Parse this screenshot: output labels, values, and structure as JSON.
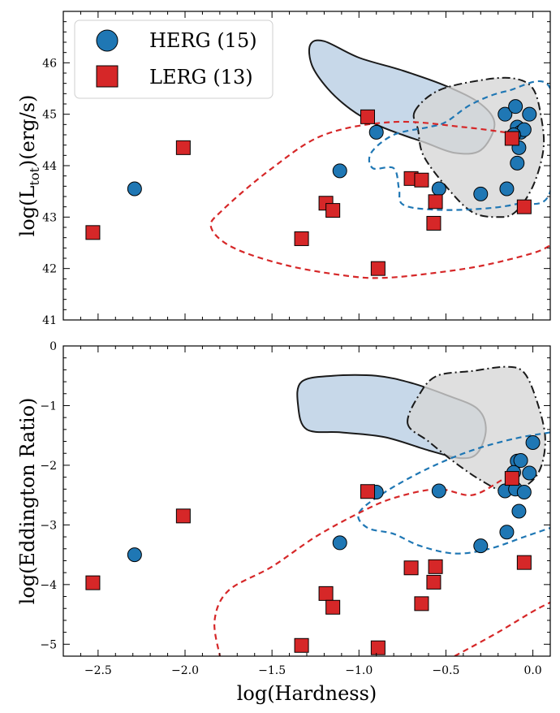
{
  "chart_data": [
    {
      "type": "scatter",
      "panel": "top",
      "xlabel": "",
      "ylabel_prefix": "log(L",
      "ylabel_sub": "tot",
      "ylabel_suffix": ")(erg/s)",
      "xlim": [
        -2.7,
        0.1
      ],
      "ylim": [
        41,
        47
      ],
      "x_ticks": [
        -2.5,
        -2.0,
        -1.5,
        -1.0,
        -0.5,
        0.0
      ],
      "y_ticks": [
        41,
        42,
        43,
        44,
        45,
        46
      ],
      "y_tick_labels": [
        "41",
        "42",
        "43",
        "44",
        "45",
        "46"
      ],
      "legend": {
        "placement": "top-left",
        "entries": [
          {
            "label": "HERG (15)",
            "marker": "circle",
            "color": "#1f77b4"
          },
          {
            "label": "LERG (13)",
            "marker": "square",
            "color": "#d62728"
          }
        ]
      },
      "series": [
        {
          "name": "HERG (15)",
          "color": "#1f77b4",
          "points": [
            {
              "x": -2.29,
              "y": 43.55
            },
            {
              "x": -1.11,
              "y": 43.9
            },
            {
              "x": -0.9,
              "y": 44.65
            },
            {
              "x": -0.54,
              "y": 43.55
            },
            {
              "x": -0.3,
              "y": 43.45
            },
            {
              "x": -0.15,
              "y": 43.55
            },
            {
              "x": -0.16,
              "y": 45.0
            },
            {
              "x": -0.1,
              "y": 45.15
            },
            {
              "x": -0.09,
              "y": 44.75
            },
            {
              "x": -0.07,
              "y": 44.65
            },
            {
              "x": -0.08,
              "y": 44.35
            },
            {
              "x": -0.05,
              "y": 44.7
            },
            {
              "x": -0.02,
              "y": 45.0
            },
            {
              "x": -0.09,
              "y": 44.05
            },
            {
              "x": -0.11,
              "y": 44.6
            }
          ]
        },
        {
          "name": "LERG (13)",
          "color": "#d62728",
          "points": [
            {
              "x": -2.53,
              "y": 42.7
            },
            {
              "x": -2.01,
              "y": 44.35
            },
            {
              "x": -1.33,
              "y": 42.58
            },
            {
              "x": -1.19,
              "y": 43.27
            },
            {
              "x": -1.15,
              "y": 43.13
            },
            {
              "x": -0.95,
              "y": 44.95
            },
            {
              "x": -0.89,
              "y": 42.0
            },
            {
              "x": -0.7,
              "y": 43.75
            },
            {
              "x": -0.64,
              "y": 43.72
            },
            {
              "x": -0.56,
              "y": 43.3
            },
            {
              "x": -0.57,
              "y": 42.88
            },
            {
              "x": -0.12,
              "y": 44.53
            },
            {
              "x": -0.05,
              "y": 43.2
            }
          ]
        }
      ],
      "contours": [
        {
          "name": "HERG filled",
          "fill": "#b7cde3",
          "stroke": "#1a1a1a",
          "dash": "solid",
          "points": [
            [
              -1.28,
              46.35
            ],
            [
              -1.2,
              46.42
            ],
            [
              -1.0,
              46.1
            ],
            [
              -0.75,
              45.85
            ],
            [
              -0.5,
              45.55
            ],
            [
              -0.3,
              45.2
            ],
            [
              -0.22,
              44.8
            ],
            [
              -0.3,
              44.3
            ],
            [
              -0.45,
              44.25
            ],
            [
              -0.62,
              44.45
            ],
            [
              -0.75,
              44.6
            ],
            [
              -0.9,
              44.8
            ],
            [
              -1.05,
              45.1
            ],
            [
              -1.18,
              45.5
            ],
            [
              -1.27,
              45.95
            ]
          ]
        },
        {
          "name": "LERG filled",
          "fill": "#d6d6d6",
          "stroke": "#1a1a1a",
          "dash": "dashdot",
          "points": [
            [
              -0.68,
              45.05
            ],
            [
              -0.55,
              45.45
            ],
            [
              -0.32,
              45.65
            ],
            [
              -0.12,
              45.7
            ],
            [
              0.0,
              45.5
            ],
            [
              0.05,
              44.9
            ],
            [
              0.06,
              44.3
            ],
            [
              0.0,
              43.6
            ],
            [
              -0.1,
              43.1
            ],
            [
              -0.2,
              43.0
            ],
            [
              -0.35,
              43.1
            ],
            [
              -0.5,
              43.6
            ],
            [
              -0.63,
              44.2
            ],
            [
              -0.66,
              44.7
            ]
          ]
        },
        {
          "name": "HERG dashed",
          "fill": "none",
          "stroke": "#1f77b4",
          "dash": "dashed",
          "points": [
            [
              0.1,
              45.5
            ],
            [
              -0.15,
              45.45
            ],
            [
              -0.35,
              45.2
            ],
            [
              -0.5,
              44.85
            ],
            [
              -0.6,
              44.75
            ],
            [
              -0.8,
              44.6
            ],
            [
              -0.93,
              44.25
            ],
            [
              -0.92,
              43.95
            ],
            [
              -0.8,
              43.95
            ],
            [
              -0.77,
              43.55
            ],
            [
              -0.75,
              43.25
            ],
            [
              -0.6,
              43.15
            ],
            [
              -0.35,
              43.15
            ],
            [
              -0.1,
              43.25
            ],
            [
              0.1,
              43.5
            ]
          ]
        },
        {
          "name": "LERG dashed",
          "fill": "none",
          "stroke": "#d62728",
          "dash": "dashed",
          "points": [
            [
              -0.1,
              44.62
            ],
            [
              -0.4,
              44.75
            ],
            [
              -0.8,
              44.85
            ],
            [
              -1.2,
              44.6
            ],
            [
              -1.5,
              43.95
            ],
            [
              -1.78,
              43.15
            ],
            [
              -1.85,
              42.8
            ],
            [
              -1.72,
              42.4
            ],
            [
              -1.4,
              42.05
            ],
            [
              -1.05,
              41.85
            ],
            [
              -0.85,
              41.82
            ],
            [
              -0.6,
              41.9
            ],
            [
              -0.3,
              42.05
            ],
            [
              0.0,
              42.3
            ],
            [
              0.1,
              42.45
            ]
          ],
          "closed": false
        }
      ]
    },
    {
      "type": "scatter",
      "panel": "bottom",
      "xlabel": "log(Hardness)",
      "ylabel": "log(Eddington Ratio)",
      "xlim": [
        -2.7,
        0.1
      ],
      "ylim": [
        -5.2,
        0
      ],
      "x_ticks": [
        -2.5,
        -2.0,
        -1.5,
        -1.0,
        -0.5,
        0.0
      ],
      "x_tick_labels": [
        "−2.5",
        "−2.0",
        "−1.5",
        "−1.0",
        "−0.5",
        "0.0"
      ],
      "y_ticks": [
        -5,
        -4,
        -3,
        -2,
        -1,
        0
      ],
      "y_tick_labels": [
        "−5",
        "−4",
        "−3",
        "−2",
        "−1",
        "0"
      ],
      "series": [
        {
          "name": "HERG (15)",
          "color": "#1f77b4",
          "points": [
            {
              "x": -2.29,
              "y": -3.5
            },
            {
              "x": -1.11,
              "y": -3.3
            },
            {
              "x": -0.9,
              "y": -2.45
            },
            {
              "x": -0.54,
              "y": -2.43
            },
            {
              "x": -0.3,
              "y": -3.35
            },
            {
              "x": -0.15,
              "y": -3.12
            },
            {
              "x": -0.16,
              "y": -2.43
            },
            {
              "x": -0.1,
              "y": -2.4
            },
            {
              "x": -0.09,
              "y": -1.93
            },
            {
              "x": -0.07,
              "y": -1.92
            },
            {
              "x": -0.08,
              "y": -2.77
            },
            {
              "x": -0.05,
              "y": -2.45
            },
            {
              "x": -0.02,
              "y": -2.13
            },
            {
              "x": 0.0,
              "y": -1.62
            },
            {
              "x": -0.11,
              "y": -2.12
            }
          ]
        },
        {
          "name": "LERG (13)",
          "color": "#d62728",
          "points": [
            {
              "x": -2.53,
              "y": -3.97
            },
            {
              "x": -2.01,
              "y": -2.85
            },
            {
              "x": -1.33,
              "y": -5.02
            },
            {
              "x": -1.19,
              "y": -4.15
            },
            {
              "x": -1.15,
              "y": -4.38
            },
            {
              "x": -0.95,
              "y": -2.44
            },
            {
              "x": -0.89,
              "y": -5.06
            },
            {
              "x": -0.7,
              "y": -3.72
            },
            {
              "x": -0.64,
              "y": -4.32
            },
            {
              "x": -0.56,
              "y": -3.7
            },
            {
              "x": -0.57,
              "y": -3.96
            },
            {
              "x": -0.12,
              "y": -2.22
            },
            {
              "x": -0.05,
              "y": -3.63
            }
          ]
        }
      ],
      "contours": [
        {
          "name": "HERG filled",
          "fill": "#b7cde3",
          "stroke": "#1a1a1a",
          "dash": "solid",
          "points": [
            [
              -1.33,
              -0.6
            ],
            [
              -1.15,
              -0.5
            ],
            [
              -0.9,
              -0.5
            ],
            [
              -0.7,
              -0.62
            ],
            [
              -0.5,
              -0.82
            ],
            [
              -0.32,
              -1.05
            ],
            [
              -0.27,
              -1.4
            ],
            [
              -0.32,
              -1.8
            ],
            [
              -0.42,
              -1.88
            ],
            [
              -0.6,
              -1.75
            ],
            [
              -0.85,
              -1.53
            ],
            [
              -1.1,
              -1.45
            ],
            [
              -1.3,
              -1.4
            ],
            [
              -1.35,
              -1.0
            ]
          ]
        },
        {
          "name": "LERG filled",
          "fill": "#d6d6d6",
          "stroke": "#1a1a1a",
          "dash": "dashdot",
          "points": [
            [
              -0.72,
              -1.3
            ],
            [
              -0.65,
              -0.8
            ],
            [
              -0.55,
              -0.5
            ],
            [
              -0.35,
              -0.42
            ],
            [
              -0.15,
              -0.35
            ],
            [
              -0.05,
              -0.45
            ],
            [
              0.02,
              -0.9
            ],
            [
              0.07,
              -1.5
            ],
            [
              0.05,
              -2.0
            ],
            [
              -0.02,
              -2.3
            ],
            [
              -0.15,
              -2.45
            ],
            [
              -0.3,
              -2.25
            ],
            [
              -0.45,
              -1.95
            ],
            [
              -0.6,
              -1.6
            ]
          ]
        },
        {
          "name": "HERG dashed",
          "fill": "none",
          "stroke": "#1f77b4",
          "dash": "dashed",
          "points": [
            [
              0.1,
              -1.45
            ],
            [
              -0.1,
              -1.55
            ],
            [
              -0.35,
              -1.75
            ],
            [
              -0.6,
              -2.05
            ],
            [
              -0.85,
              -2.45
            ],
            [
              -1.0,
              -2.8
            ],
            [
              -0.95,
              -3.05
            ],
            [
              -0.8,
              -3.15
            ],
            [
              -0.65,
              -3.35
            ],
            [
              -0.45,
              -3.48
            ],
            [
              -0.25,
              -3.4
            ],
            [
              -0.05,
              -3.2
            ],
            [
              0.1,
              -3.05
            ]
          ],
          "closed": false
        },
        {
          "name": "LERG dashed",
          "fill": "none",
          "stroke": "#d62728",
          "dash": "dashed",
          "points": [
            [
              -0.18,
              -2.25
            ],
            [
              -0.35,
              -2.5
            ],
            [
              -0.55,
              -2.4
            ],
            [
              -0.8,
              -2.55
            ],
            [
              -1.0,
              -2.8
            ],
            [
              -1.25,
              -3.2
            ],
            [
              -1.5,
              -3.7
            ],
            [
              -1.75,
              -4.1
            ],
            [
              -1.83,
              -4.6
            ],
            [
              -1.8,
              -5.2
            ]
          ],
          "closed": false
        },
        {
          "name": "LERG dashed lower",
          "fill": "none",
          "stroke": "#d62728",
          "dash": "dashed",
          "points": [
            [
              -0.45,
              -5.2
            ],
            [
              -0.2,
              -4.8
            ],
            [
              0.0,
              -4.45
            ],
            [
              0.1,
              -4.3
            ]
          ],
          "closed": false
        }
      ]
    }
  ]
}
